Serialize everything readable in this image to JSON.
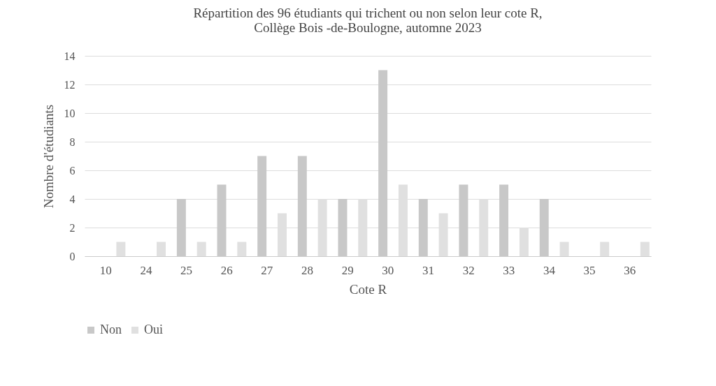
{
  "chart_data": {
    "type": "bar",
    "title": "Répartition des 96 étudiants qui trichent ou non selon leur cote R,\nCollège Bois -de-Boulogne, automne 2023",
    "xlabel": "Cote R",
    "ylabel": "Nombre d'étudiants",
    "categories": [
      "10",
      "24",
      "25",
      "26",
      "27",
      "28",
      "29",
      "30",
      "31",
      "32",
      "33",
      "34",
      "35",
      "36"
    ],
    "series": [
      {
        "name": "Non",
        "color": "#c8c8c8",
        "values": [
          0,
          0,
          4,
          5,
          7,
          7,
          4,
          13,
          4,
          5,
          5,
          4,
          0,
          0
        ]
      },
      {
        "name": "Oui",
        "color": "#e0e0e0",
        "values": [
          1,
          1,
          1,
          1,
          3,
          4,
          4,
          5,
          3,
          4,
          2,
          1,
          1,
          1
        ]
      }
    ],
    "ylim": [
      0,
      14
    ],
    "yticks": [
      0,
      2,
      4,
      6,
      8,
      10,
      12,
      14
    ],
    "grid": "y",
    "legend": "bottom"
  }
}
